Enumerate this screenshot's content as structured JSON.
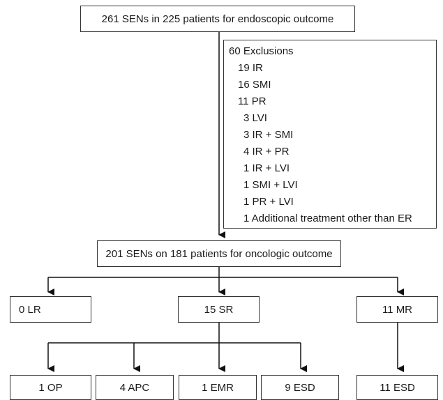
{
  "top": {
    "label": "261 SENs in 225 patients for endoscopic outcome"
  },
  "exclusions": {
    "title": "60 Exclusions",
    "items": [
      "19 IR",
      "16 SMI",
      "11 PR",
      "3 LVI",
      "3 IR + SMI",
      "4 IR + PR",
      "1 IR + LVI",
      "1 SMI + LVI",
      "1 PR + LVI",
      "1 Additional treatment other than ER"
    ]
  },
  "oncologic": {
    "label": "201 SENs on 181 patients for oncologic outcome"
  },
  "level2": {
    "lr": "0 LR",
    "sr": "15 SR",
    "mr": "11 MR"
  },
  "level3": {
    "op": "1 OP",
    "apc": "4 APC",
    "emr": "1 EMR",
    "esd_sr": "9 ESD",
    "esd_mr": "11 ESD"
  }
}
